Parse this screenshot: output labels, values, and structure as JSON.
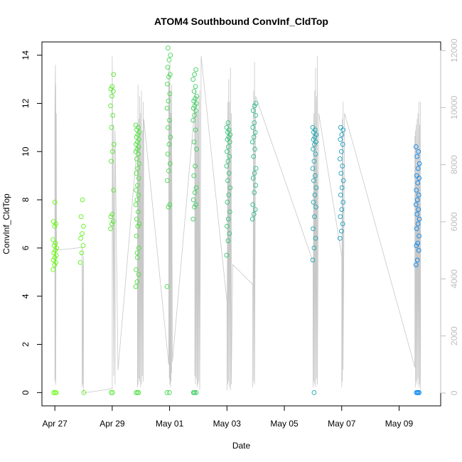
{
  "chart_data": {
    "type": "scatter",
    "title": "ATOM4 Southbound ConvInf_CldTop",
    "xlabel": "Date",
    "ylabel": "ConvInf_CldTop",
    "x_unit": "days after Apr 27",
    "xlim": [
      -0.45,
      13.45
    ],
    "ylim": [
      -0.55,
      14.55
    ],
    "y2lim": [
      -450,
      12300
    ],
    "x_ticks": [
      0,
      2,
      4,
      6,
      8,
      10,
      12
    ],
    "x_tick_labels": [
      "Apr 27",
      "Apr 29",
      "May 01",
      "May 03",
      "May 05",
      "May 07",
      "May 09"
    ],
    "y_ticks": [
      0,
      2,
      4,
      6,
      8,
      10,
      12,
      14
    ],
    "y2_ticks": [
      0,
      2000,
      4000,
      6000,
      8000,
      10000,
      12000
    ],
    "grid": false,
    "color_gradient": [
      "#66ff00",
      "#0080ff"
    ],
    "colors": {
      "secondary_series": "#c8c8c8",
      "secondary_axis": "#bdbdbd"
    },
    "series": [
      {
        "name": "ConvInf_CldTop",
        "marker": "open-circle",
        "clusters": [
          {
            "x": 0.0,
            "values": [
              5.1,
              5.3,
              5.4,
              5.5,
              5.6,
              5.7,
              5.8,
              5.9,
              6.0,
              6.1,
              6.2,
              6.35,
              6.9,
              7.0,
              7.1,
              7.9,
              0,
              0,
              0
            ]
          },
          {
            "x": 0.95,
            "values": [
              5.4,
              5.8,
              6.1,
              6.4,
              6.6,
              6.9,
              7.3,
              8.0,
              0
            ]
          },
          {
            "x": 2.0,
            "values": [
              6.8,
              7.0,
              7.1,
              7.3,
              7.4,
              8.4,
              9.6,
              10.0,
              10.3,
              11.0,
              11.5,
              11.9,
              12.3,
              12.5,
              12.6,
              12.7,
              13.2,
              0,
              0
            ]
          },
          {
            "x": 2.88,
            "values": [
              4.4,
              4.6,
              4.9,
              5.1,
              5.6,
              6.0,
              6.5,
              6.9,
              7.0,
              7.2,
              7.5,
              7.8,
              8.0,
              8.2,
              8.4,
              8.6,
              8.9,
              9.1,
              9.3,
              9.5,
              9.7,
              9.9,
              10.0,
              10.1,
              10.2,
              10.3,
              10.4,
              10.5,
              10.6,
              10.7,
              10.8,
              10.9,
              11.0,
              11.1,
              5.8,
              0,
              0,
              0
            ]
          },
          {
            "x": 3.97,
            "values": [
              4.4,
              7.7,
              7.8,
              8.8,
              9.2,
              9.5,
              9.9,
              10.3,
              10.6,
              11.0,
              11.3,
              11.8,
              12.1,
              12.4,
              12.8,
              13.1,
              13.2,
              13.5,
              13.8,
              14.0,
              14.3,
              0,
              0
            ]
          },
          {
            "x": 4.88,
            "values": [
              7.2,
              7.7,
              7.8,
              8.0,
              8.3,
              8.5,
              9.0,
              9.4,
              10.1,
              10.4,
              10.9,
              11.3,
              11.5,
              11.7,
              11.8,
              11.9,
              12.0,
              12.1,
              12.2,
              12.3,
              12.5,
              12.7,
              13.0,
              13.2,
              13.4,
              0,
              0,
              0,
              0
            ]
          },
          {
            "x": 6.05,
            "values": [
              5.7,
              6.3,
              6.6,
              6.9,
              7.2,
              7.5,
              7.9,
              8.2,
              8.5,
              8.8,
              9.1,
              9.4,
              9.6,
              9.8,
              10.0,
              10.2,
              10.4,
              10.5,
              10.6,
              10.7,
              10.8,
              10.9,
              11.0,
              11.2
            ]
          },
          {
            "x": 6.95,
            "values": [
              7.2,
              7.4,
              7.6,
              7.8,
              8.3,
              8.6,
              8.9,
              9.1,
              9.3,
              9.8,
              10.1,
              10.4,
              10.6,
              10.8,
              11.0,
              11.2,
              11.5,
              11.7,
              11.9,
              12.0
            ]
          },
          {
            "x": 9.05,
            "values": [
              5.5,
              6.0,
              6.4,
              6.8,
              7.3,
              7.7,
              7.9,
              8.2,
              8.5,
              8.8,
              9.0,
              9.3,
              9.6,
              9.9,
              10.1,
              10.3,
              10.4,
              10.5,
              10.6,
              10.7,
              10.8,
              10.9,
              11.0,
              0
            ]
          },
          {
            "x": 10.0,
            "values": [
              6.4,
              6.7,
              7.0,
              7.3,
              7.6,
              7.9,
              8.2,
              8.5,
              8.8,
              9.1,
              9.4,
              9.7,
              10.0,
              10.3,
              10.5,
              10.7,
              10.9,
              11.0
            ]
          },
          {
            "x": 12.65,
            "values": [
              5.3,
              5.5,
              5.9,
              6.1,
              6.2,
              6.5,
              6.8,
              7.0,
              7.2,
              7.4,
              7.6,
              7.8,
              8.0,
              8.2,
              8.4,
              8.7,
              8.9,
              9.0,
              9.3,
              9.5,
              9.8,
              10.0,
              10.2,
              0,
              0,
              0,
              0,
              0
            ]
          }
        ]
      },
      {
        "name": "secondary (right axis)",
        "axis": "right",
        "style": "line",
        "x": [
          0.0,
          0.0,
          0.02,
          0.02,
          0.03,
          0.03,
          0.05,
          0.05,
          0.06,
          0.06,
          0.08,
          0.95,
          0.95,
          0.97,
          0.97,
          1.0,
          1.0,
          2.0,
          2.0,
          2.05,
          2.05,
          2.1,
          2.1,
          2.2,
          2.88,
          2.88,
          2.9,
          2.9,
          2.93,
          2.93,
          2.96,
          2.96,
          2.99,
          2.99,
          3.02,
          3.02,
          3.05,
          3.05,
          3.08,
          3.08,
          3.1,
          3.97,
          3.97,
          3.99,
          3.99,
          4.01,
          4.01,
          4.03,
          4.03,
          4.05,
          4.05,
          4.07,
          4.07,
          4.1,
          4.88,
          4.88,
          4.9,
          4.9,
          4.93,
          4.93,
          4.96,
          4.96,
          4.99,
          4.99,
          5.02,
          5.02,
          5.05,
          5.05,
          5.1,
          6.0,
          6.0,
          6.03,
          6.03,
          6.06,
          6.06,
          6.09,
          6.09,
          6.12,
          6.12,
          6.15,
          6.15,
          6.2,
          6.9,
          6.9,
          6.93,
          6.93,
          6.96,
          6.96,
          7.0,
          9.0,
          9.0,
          9.03,
          9.03,
          9.06,
          9.06,
          9.09,
          9.09,
          9.12,
          9.12,
          9.15,
          9.15,
          9.2,
          10.0,
          10.0,
          10.02,
          10.02,
          10.05,
          10.05,
          10.1,
          12.55,
          12.55,
          12.57,
          12.57,
          12.6,
          12.6,
          12.63,
          12.63,
          12.66,
          12.66,
          12.69,
          12.69,
          12.72,
          12.72,
          12.75,
          12.75
        ],
        "values": [
          400,
          9800,
          11500,
          500,
          10800,
          300,
          9600,
          9800,
          5000,
          5100,
          5000,
          5100,
          200,
          4500,
          300,
          4800,
          0,
          150,
          11800,
          600,
          9400,
          300,
          9200,
          800,
          8800,
          200,
          10800,
          300,
          9600,
          500,
          10400,
          400,
          9800,
          200,
          10600,
          300,
          9200,
          600,
          10200,
          400,
          9600,
          1000,
          11400,
          500,
          10800,
          300,
          11600,
          200,
          10600,
          400,
          9800,
          700,
          10800,
          1100,
          10000,
          600,
          10600,
          300,
          10400,
          500,
          9800,
          200,
          9900,
          300,
          10400,
          400,
          10600,
          100,
          11800,
          3200,
          100,
          10200,
          300,
          11000,
          400,
          10200,
          200,
          11400,
          100,
          9800,
          300,
          4500,
          3800,
          200,
          10600,
          400,
          11600,
          300,
          10400,
          4600,
          200,
          9800,
          400,
          10600,
          300,
          11400,
          200,
          10400,
          500,
          11800,
          300,
          9800,
          4800,
          200,
          9600,
          400,
          10200,
          800,
          9800,
          900,
          9000,
          200,
          9200,
          400,
          9400,
          300,
          9600,
          500,
          9800,
          200,
          10200,
          300,
          9400,
          100,
          10200
        ]
      }
    ]
  }
}
